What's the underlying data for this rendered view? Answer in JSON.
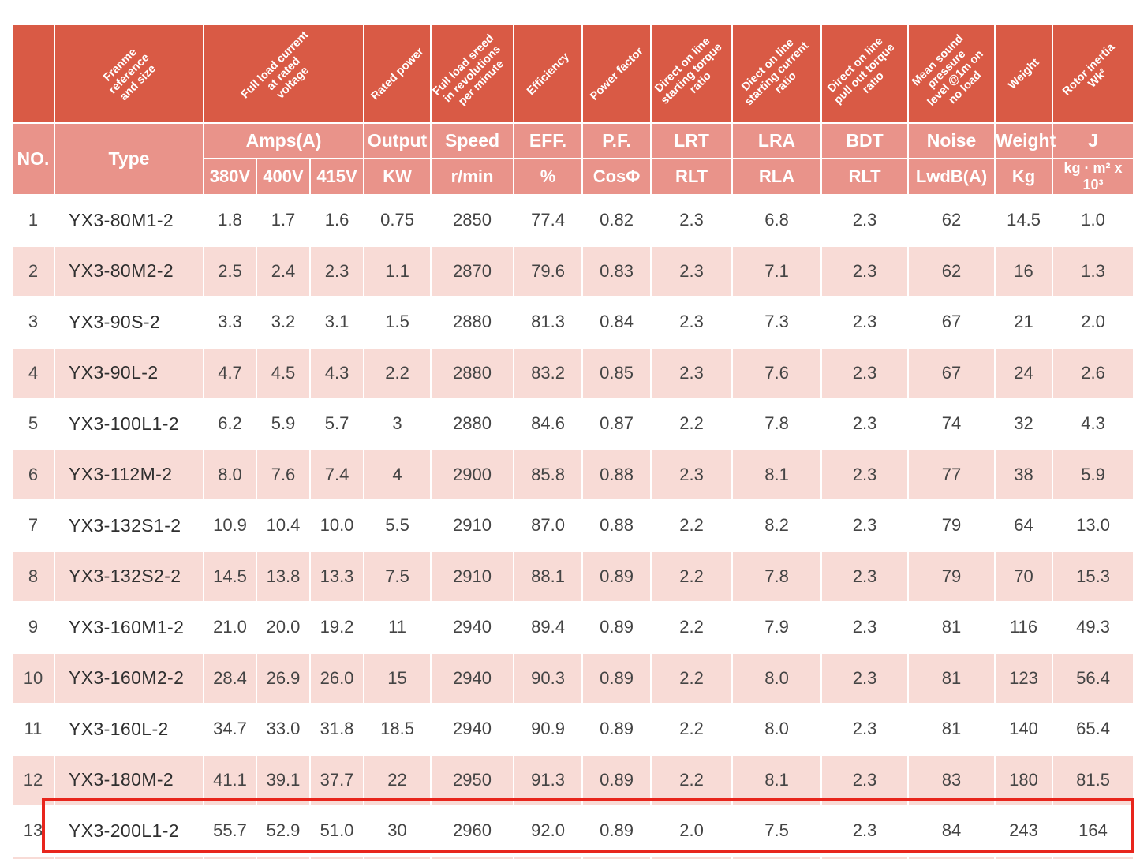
{
  "colors": {
    "header_dark": "#d95a45",
    "header_light": "#e9938a",
    "row_pink": "#f8dbd6",
    "row_white": "#ffffff",
    "data_text": "#444444",
    "highlight_red": "#e8251c"
  },
  "table": {
    "diagonal_headers": [
      "",
      "Franme\nreference\nand size",
      "Full load current\nat rated\nvoltage",
      "Rated power",
      "Full load sreed\nin revolutions\nper minute",
      "Efficiency",
      "Power factor",
      "Direct on line\nstarting torque\nratio",
      "Diect on line\nstarting current\nratio",
      "Direct on line\npull out torque\nratio",
      "Mean sound\npressure\nlevel @1m on\nno load",
      "Weight",
      "Rotor inertia\nWk²"
    ],
    "group_headers": [
      "NO.",
      "Type",
      "Amps(A)",
      "Output",
      "Speed",
      "EFF.",
      "P.F.",
      "LRT",
      "LRA",
      "BDT",
      "Noise",
      "Weight",
      "J"
    ],
    "unit_headers": [
      "380V",
      "400V",
      "415V",
      "KW",
      "r/min",
      "%",
      "CosΦ",
      "RLT",
      "RLA",
      "RLT",
      "LwdB(A)",
      "Kg",
      "kg · m² x 10³"
    ],
    "rows": [
      [
        "1",
        "YX3-80M1-2",
        "1.8",
        "1.7",
        "1.6",
        "0.75",
        "2850",
        "77.4",
        "0.82",
        "2.3",
        "6.8",
        "2.3",
        "62",
        "14.5",
        "1.0"
      ],
      [
        "2",
        "YX3-80M2-2",
        "2.5",
        "2.4",
        "2.3",
        "1.1",
        "2870",
        "79.6",
        "0.83",
        "2.3",
        "7.1",
        "2.3",
        "62",
        "16",
        "1.3"
      ],
      [
        "3",
        "YX3-90S-2",
        "3.3",
        "3.2",
        "3.1",
        "1.5",
        "2880",
        "81.3",
        "0.84",
        "2.3",
        "7.3",
        "2.3",
        "67",
        "21",
        "2.0"
      ],
      [
        "4",
        "YX3-90L-2",
        "4.7",
        "4.5",
        "4.3",
        "2.2",
        "2880",
        "83.2",
        "0.85",
        "2.3",
        "7.6",
        "2.3",
        "67",
        "24",
        "2.6"
      ],
      [
        "5",
        "YX3-100L1-2",
        "6.2",
        "5.9",
        "5.7",
        "3",
        "2880",
        "84.6",
        "0.87",
        "2.2",
        "7.8",
        "2.3",
        "74",
        "32",
        "4.3"
      ],
      [
        "6",
        "YX3-112M-2",
        "8.0",
        "7.6",
        "7.4",
        "4",
        "2900",
        "85.8",
        "0.88",
        "2.3",
        "8.1",
        "2.3",
        "77",
        "38",
        "5.9"
      ],
      [
        "7",
        "YX3-132S1-2",
        "10.9",
        "10.4",
        "10.0",
        "5.5",
        "2910",
        "87.0",
        "0.88",
        "2.2",
        "8.2",
        "2.3",
        "79",
        "64",
        "13.0"
      ],
      [
        "8",
        "YX3-132S2-2",
        "14.5",
        "13.8",
        "13.3",
        "7.5",
        "2910",
        "88.1",
        "0.89",
        "2.2",
        "7.8",
        "2.3",
        "79",
        "70",
        "15.3"
      ],
      [
        "9",
        "YX3-160M1-2",
        "21.0",
        "20.0",
        "19.2",
        "11",
        "2940",
        "89.4",
        "0.89",
        "2.2",
        "7.9",
        "2.3",
        "81",
        "116",
        "49.3"
      ],
      [
        "10",
        "YX3-160M2-2",
        "28.4",
        "26.9",
        "26.0",
        "15",
        "2940",
        "90.3",
        "0.89",
        "2.2",
        "8.0",
        "2.3",
        "81",
        "123",
        "56.4"
      ],
      [
        "11",
        "YX3-160L-2",
        "34.7",
        "33.0",
        "31.8",
        "18.5",
        "2940",
        "90.9",
        "0.89",
        "2.2",
        "8.0",
        "2.3",
        "81",
        "140",
        "65.4"
      ],
      [
        "12",
        "YX3-180M-2",
        "41.1",
        "39.1",
        "37.7",
        "22",
        "2950",
        "91.3",
        "0.89",
        "2.2",
        "8.1",
        "2.3",
        "83",
        "180",
        "81.5"
      ],
      [
        "13",
        "YX3-200L1-2",
        "55.7",
        "52.9",
        "51.0",
        "30",
        "2960",
        "92.0",
        "0.89",
        "2.0",
        "7.5",
        "2.3",
        "84",
        "243",
        "164"
      ]
    ]
  },
  "highlight": {
    "target_row_no": "13",
    "color": "#e8251c"
  }
}
